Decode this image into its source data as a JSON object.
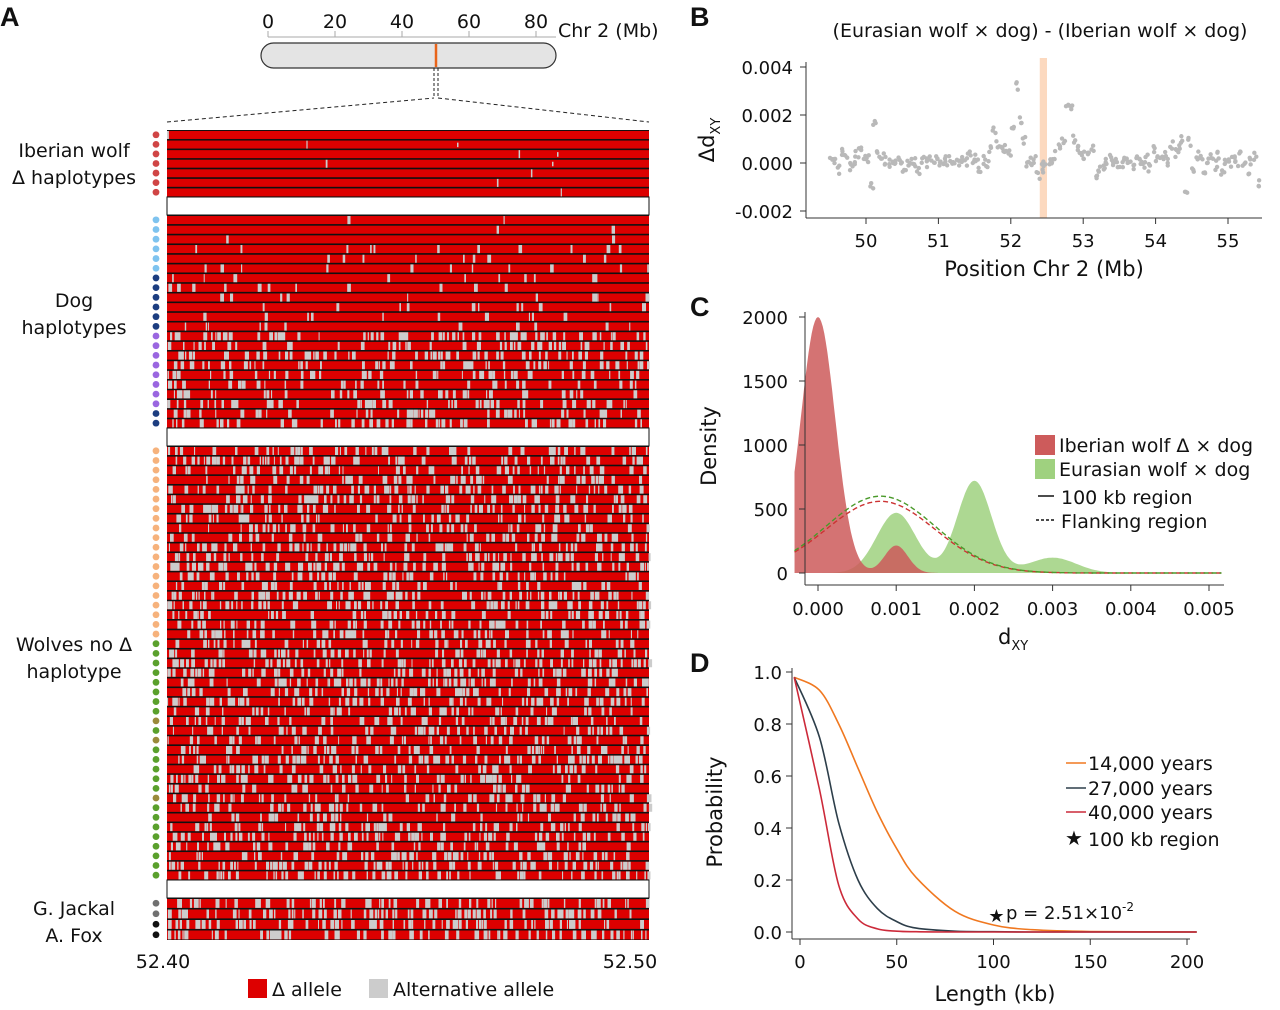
{
  "panel_labels": {
    "a": "A",
    "b": "B",
    "c": "C",
    "d": "D"
  },
  "colors": {
    "delta": "#dd0000",
    "alt": "#cccccc",
    "highlight": "#fcd9bf",
    "scatter": "#b9b9b9",
    "iberian_fill": "#cd5b5b",
    "eurasian_fill": "#9fd17f",
    "iberian_dash": "#cc3333",
    "eurasian_dash": "#4a9a2a",
    "y14": "#f07820",
    "y27": "#2d3e4a",
    "y40": "#cc2a3a",
    "chrom_mark": "#e8641a"
  },
  "chart_data": [
    {
      "id": "A",
      "type": "heatmap",
      "chromosome": {
        "label": "Chr 2 (Mb)",
        "ticks": [
          "0",
          "20",
          "40",
          "60",
          "80"
        ],
        "range": [
          0,
          88
        ],
        "marked_position": 52.45
      },
      "x_range_labels": [
        "52.40",
        "52.50"
      ],
      "groups": [
        {
          "label_lines": [
            "Iberian wolf",
            "Δ haplotypes"
          ],
          "rows": 7,
          "alt_density": 0.004,
          "dot_colors": [
            "#d04545",
            "#d04545",
            "#d04545",
            "#d04545",
            "#d04545",
            "#d04545",
            "#d04545"
          ]
        },
        {
          "label_lines": [
            "Dog",
            "haplotypes"
          ],
          "rows": 22,
          "alt_density": 0.12,
          "dot_colors": [
            "#7ec3ef",
            "#7ec3ef",
            "#7ec3ef",
            "#7ec3ef",
            "#7ec3ef",
            "#7ec3ef",
            "#1c3d80",
            "#1c3d80",
            "#1c3d80",
            "#1c3d80",
            "#1c3d80",
            "#1c3d80",
            "#9a66e0",
            "#9a66e0",
            "#9a66e0",
            "#9a66e0",
            "#9a66e0",
            "#9a66e0",
            "#9a66e0",
            "#9a66e0",
            "#1c3d80",
            "#1c3d80"
          ]
        },
        {
          "label_lines": [
            "Wolves no Δ",
            "haplotype"
          ],
          "rows": 45,
          "alt_density": 0.35,
          "dot_colors": [
            "#f6b27c",
            "#f6b27c",
            "#f6b27c",
            "#f6b27c",
            "#f6b27c",
            "#f6b27c",
            "#f6b27c",
            "#f6b27c",
            "#f6b27c",
            "#f6b27c",
            "#f6b27c",
            "#f6b27c",
            "#f6b27c",
            "#f6b27c",
            "#f6b27c",
            "#f6b27c",
            "#f6b27c",
            "#f6b27c",
            "#f6b27c",
            "#f6b27c",
            "#5aa02c",
            "#5aa02c",
            "#5aa02c",
            "#5aa02c",
            "#5aa02c",
            "#5aa02c",
            "#5aa02c",
            "#5aa02c",
            "#9a8a3a",
            "#5aa02c",
            "#9a8a3a",
            "#5aa02c",
            "#5aa02c",
            "#5aa02c",
            "#5aa02c",
            "#5aa02c",
            "#9a8a3a",
            "#5aa02c",
            "#5aa02c",
            "#5aa02c",
            "#5aa02c",
            "#5aa02c",
            "#5aa02c",
            "#5aa02c",
            "#5aa02c"
          ]
        },
        {
          "label_lines": [
            "G. Jackal",
            "A. Fox"
          ],
          "rows": 4,
          "alt_density": 0.4,
          "dot_colors": [
            "#707070",
            "#707070",
            "#111111",
            "#111111"
          ]
        }
      ],
      "legend": [
        {
          "label": "Δ allele",
          "color": "#dd0000"
        },
        {
          "label": "Alternative allele",
          "color": "#cccccc"
        }
      ]
    },
    {
      "id": "B",
      "type": "scatter",
      "title": "(Eurasian wolf × dog) - (Iberian wolf × dog)",
      "xlabel": "Position Chr 2 (Mb)",
      "ylabel": "Δd",
      "ylabel_sub": "XY",
      "xlim": [
        49.4,
        55.45
      ],
      "ylim": [
        -0.0022,
        0.0042
      ],
      "xticks": [
        "50",
        "51",
        "52",
        "53",
        "54",
        "55"
      ],
      "yticks": [
        "0.004",
        "0.002",
        "0.000",
        "-0.002"
      ],
      "highlight": [
        52.4,
        52.5
      ],
      "x_start": 49.5,
      "x_step": 0.05,
      "values": [
        0.0003,
        0.0001,
        -0.0003,
        0.0005,
        0.0002,
        -0.0002,
        0.0,
        0.0004,
        0.0006,
        0.0003,
        0.0002,
        -0.0009,
        0.0016,
        0.0004,
        0.0002,
        0.0001,
        0.0,
        -0.0001,
        0.0001,
        0.0,
        -0.0002,
        0.0001,
        0.0,
        0.0,
        -0.0004,
        0.0002,
        0.0,
        0.0001,
        0.0,
        0.0001,
        0.0,
        0.0,
        0.0001,
        0.0,
        -0.0001,
        0.0,
        0.0001,
        0.0,
        0.0003,
        0.0,
        0.0002,
        -0.0002,
        0.0001,
        0.0,
        0.0005,
        0.0013,
        0.0008,
        0.0005,
        0.0006,
        0.0005,
        0.0014,
        0.0032,
        0.0018,
        0.001,
        0.0,
        0.0001,
        0.0002,
        -0.0005,
        -0.0002,
        -0.0001,
        0.0,
        0.0001,
        0.0003,
        0.0006,
        0.001,
        0.0025,
        0.0022,
        0.001,
        0.0007,
        0.0004,
        0.0003,
        0.0005,
        0.0006,
        -0.0006,
        -0.0003,
        -0.0001,
        0.0,
        0.0002,
        0.0001,
        0.0,
        0.0,
        0.0001,
        0.0,
        -0.0001,
        0.0001,
        0.0,
        0.0,
        0.0002,
        -0.0002,
        0.0005,
        0.0002,
        0.0001,
        0.0003,
        0.0,
        0.0007,
        0.0004,
        0.0006,
        0.001,
        -0.0011,
        0.0009,
        -0.0003,
        0.0003,
        0.0002,
        -0.0004,
        0.0,
        0.0002,
        -0.0001,
        0.0003,
        -0.0004,
        0.0001,
        0.0,
        0.0004,
        -0.0001,
        0.0003,
        0.0,
        -0.0004,
        0.0001,
        0.0003,
        -0.0008
      ]
    },
    {
      "id": "C",
      "type": "area",
      "xlabel": "d",
      "xlabel_sub": "XY",
      "ylabel": "Density",
      "xlim": [
        -0.00035,
        0.0052
      ],
      "ylim": [
        0,
        2000
      ],
      "xticks": [
        "0.000",
        "0.001",
        "0.002",
        "0.003",
        "0.004",
        "0.005"
      ],
      "yticks": [
        "0",
        "500",
        "1000",
        "1500",
        "2000"
      ],
      "series": [
        {
          "name": "Iberian wolf Δ × dog",
          "style": "filled",
          "components": [
            {
              "mean": 0.0,
              "sd": 0.00022,
              "peak": 2000
            },
            {
              "mean": 0.001,
              "sd": 0.00015,
              "peak": 215
            }
          ]
        },
        {
          "name": "Eurasian wolf × dog",
          "style": "filled",
          "components": [
            {
              "mean": 0.001,
              "sd": 0.00025,
              "peak": 470
            },
            {
              "mean": 0.002,
              "sd": 0.00022,
              "peak": 720
            },
            {
              "mean": 0.003,
              "sd": 0.0003,
              "peak": 120
            }
          ]
        },
        {
          "name": "Iberian flanking",
          "style": "dashed",
          "components": [
            {
              "mean": 0.0008,
              "sd": 0.0007,
              "peak": 560
            }
          ]
        },
        {
          "name": "Eurasian flanking",
          "style": "dashed",
          "components": [
            {
              "mean": 0.0008,
              "sd": 0.0007,
              "peak": 600
            }
          ]
        }
      ],
      "legend": [
        "Iberian wolf Δ × dog",
        "Eurasian wolf × dog",
        "100 kb region",
        "Flanking region"
      ]
    },
    {
      "id": "D",
      "type": "line",
      "xlabel": "Length (kb)",
      "ylabel": "Probability",
      "xlim": [
        -4,
        205
      ],
      "ylim": [
        -0.01,
        1.02
      ],
      "xticks": [
        "0",
        "50",
        "100",
        "150",
        "200"
      ],
      "yticks": [
        "1.0",
        "0.8",
        "0.6",
        "0.4",
        "0.2",
        "0.0"
      ],
      "x": [
        -3,
        10,
        20,
        30,
        40,
        50,
        60,
        80,
        100,
        120,
        150,
        205
      ],
      "series": [
        {
          "name": "14,000 years",
          "values": [
            0.98,
            0.93,
            0.8,
            0.63,
            0.46,
            0.32,
            0.21,
            0.08,
            0.027,
            0.009,
            0.002,
            0.0
          ]
        },
        {
          "name": "27,000 years",
          "values": [
            0.98,
            0.75,
            0.42,
            0.2,
            0.09,
            0.04,
            0.015,
            0.003,
            0.001,
            0.0,
            0.0,
            0.0
          ]
        },
        {
          "name": "40,000 years",
          "values": [
            0.98,
            0.55,
            0.18,
            0.05,
            0.012,
            0.003,
            0.001,
            0.0,
            0.0,
            0.0,
            0.0,
            0.0
          ]
        }
      ],
      "marker": {
        "name": "100 kb region",
        "x": 102,
        "y": 0.07,
        "label": "p = 2.51×10",
        "exponent": "-2"
      },
      "legend": [
        "14,000 years",
        "27,000 years",
        "40,000 years",
        "100 kb region"
      ]
    }
  ]
}
